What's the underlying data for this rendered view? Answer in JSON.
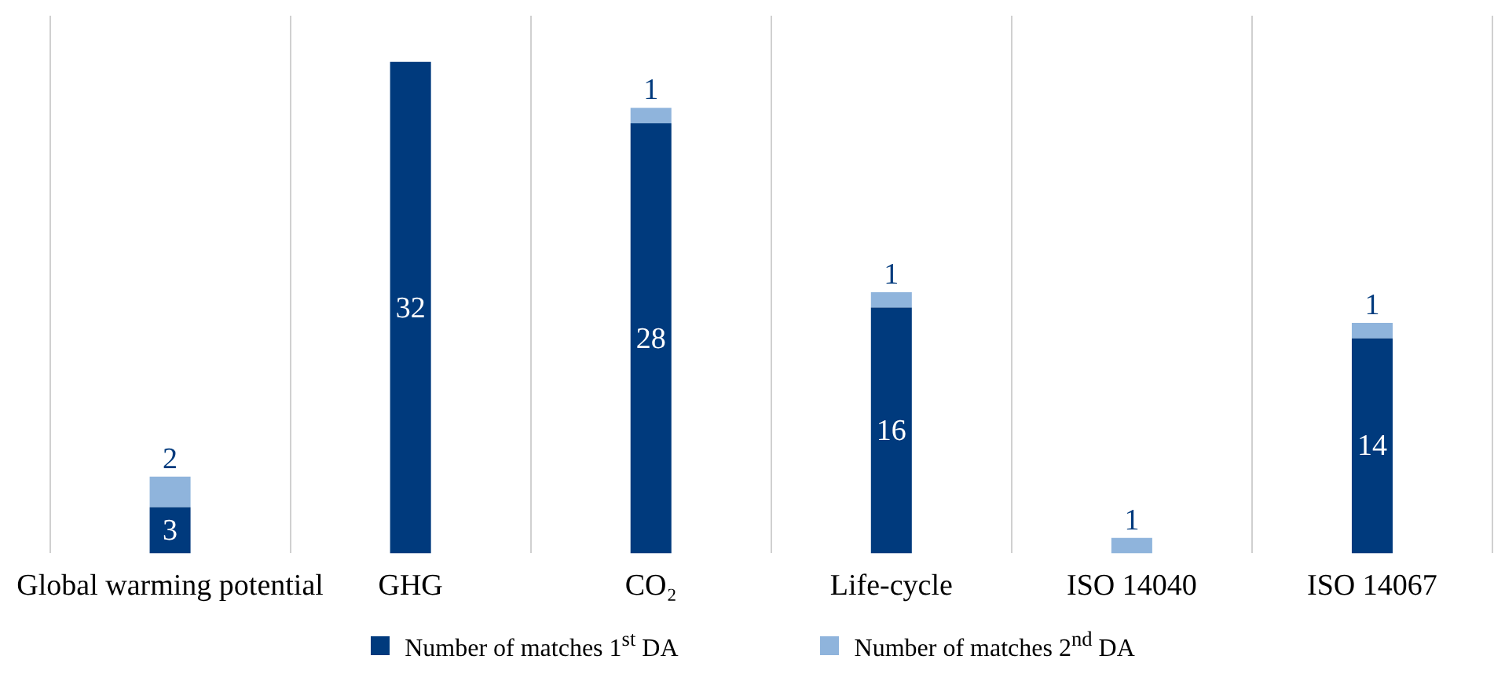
{
  "chart_data": {
    "type": "bar",
    "stacked": true,
    "data_labels": true,
    "grid": "x",
    "legend": "bottom",
    "categories": [
      "Global warming potential",
      "GHG",
      "CO₂",
      "Life-cycle",
      "ISO 14040",
      "ISO 14067"
    ],
    "series": [
      {
        "name": "Number of matches 1$^{st}$ DA",
        "color": "#003a7d",
        "values": [
          3,
          32,
          28,
          16,
          null,
          14
        ]
      },
      {
        "name": "Number of matches 2$^{nd}$ DA",
        "color": "#8fb4dc",
        "values": [
          2,
          null,
          1,
          1,
          1,
          1
        ]
      }
    ]
  }
}
